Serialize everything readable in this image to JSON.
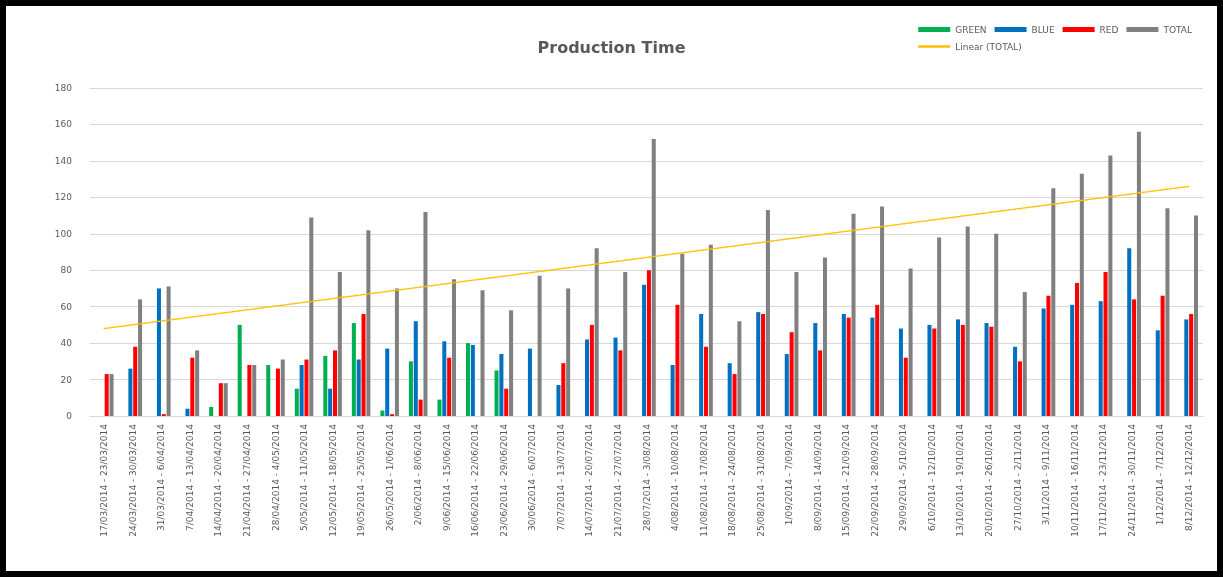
{
  "chart_data": {
    "type": "bar",
    "title": "Production Time",
    "categories": [
      "17/03/2014 - 23/03/2014",
      "24/03/2014 - 30/03/2014",
      "31/03/2014 - 6/04/2014",
      "7/04/2014 - 13/04/2014",
      "14/04/2014 - 20/04/2014",
      "21/04/2014 - 27/04/2014",
      "28/04/2014 - 4/05/2014",
      "5/05/2014 - 11/05/2014",
      "12/05/2014 - 18/05/2014",
      "19/05/2014 - 25/05/2014",
      "26/05/2014 - 1/06/2014",
      "2/06/2014 - 8/06/2014",
      "9/06/2014 - 15/06/2014",
      "16/06/2014 - 22/06/2014",
      "23/06/2014 - 29/06/2014",
      "30/06/2014 - 6/07/2014",
      "7/07/2014 - 13/07/2014",
      "14/07/2014 - 20/07/2014",
      "21/07/2014 - 27/07/2014",
      "28/07/2014 - 3/08/2014",
      "4/08/2014 - 10/08/2014",
      "11/08/2014 - 17/08/2014",
      "18/08/2014 - 24/08/2014",
      "25/08/2014 - 31/08/2014",
      "1/09/2014 - 7/09/2014",
      "8/09/2014 - 14/09/2014",
      "15/09/2014 - 21/09/2014",
      "22/09/2014 - 28/09/2014",
      "29/09/2014 - 5/10/2014",
      "6/10/2014 - 12/10/2014",
      "13/10/2014 - 19/10/2014",
      "20/10/2014 - 26/10/2014",
      "27/10/2014 - 2/11/2014",
      "3/11/2014 - 9/11/2014",
      "10/11/2014 - 16/11/2014",
      "17/11/2014 - 23/11/2014",
      "24/11/2014 - 30/11/2014",
      "1/12/2014 - 7/12/2014",
      "8/12/2014 - 12/12/2014"
    ],
    "series": [
      {
        "name": "GREEN",
        "color": "#00b050",
        "values": [
          0,
          0,
          0,
          0,
          5,
          50,
          28,
          15,
          33,
          51,
          3,
          30,
          9,
          40,
          25,
          0,
          0,
          0,
          0,
          0,
          0,
          0,
          0,
          0,
          0,
          0,
          0,
          0,
          0,
          0,
          0,
          0,
          0,
          0,
          0,
          0,
          0,
          0,
          0
        ]
      },
      {
        "name": "BLUE",
        "color": "#0070c0",
        "values": [
          0,
          26,
          70,
          4,
          0,
          0,
          0,
          28,
          15,
          31,
          37,
          52,
          41,
          39,
          34,
          37,
          17,
          42,
          43,
          72,
          28,
          56,
          29,
          57,
          34,
          51,
          56,
          54,
          48,
          50,
          53,
          51,
          38,
          59,
          61,
          63,
          92,
          47,
          53
        ]
      },
      {
        "name": "RED",
        "color": "#ff0000",
        "values": [
          23,
          38,
          1,
          32,
          18,
          28,
          26,
          31,
          36,
          56,
          1,
          9,
          32,
          0,
          15,
          0,
          29,
          50,
          36,
          80,
          61,
          38,
          23,
          56,
          46,
          36,
          54,
          61,
          32,
          48,
          50,
          49,
          30,
          66,
          73,
          79,
          64,
          66,
          56
        ]
      },
      {
        "name": "TOTAL",
        "color": "#808080",
        "values": [
          23,
          64,
          71,
          36,
          18,
          28,
          31,
          109,
          79,
          102,
          70,
          112,
          75,
          69,
          58,
          77,
          70,
          92,
          79,
          152,
          89,
          94,
          52,
          113,
          79,
          87,
          111,
          115,
          81,
          98,
          104,
          100,
          68,
          125,
          133,
          143,
          156,
          114,
          110
        ]
      },
      {
        "name": "Linear (TOTAL)",
        "type": "line",
        "color": "#ffc000",
        "line_style": "dotted",
        "marker": "none",
        "x": [
          "17/03/2014 - 23/03/2014",
          "8/12/2014 - 12/12/2014"
        ],
        "values": [
          48,
          126
        ]
      }
    ],
    "ylim": [
      0,
      180
    ],
    "yticks": [
      0,
      20,
      40,
      60,
      80,
      100,
      120,
      140,
      160,
      180
    ],
    "grid": "y",
    "legend": "top right"
  }
}
